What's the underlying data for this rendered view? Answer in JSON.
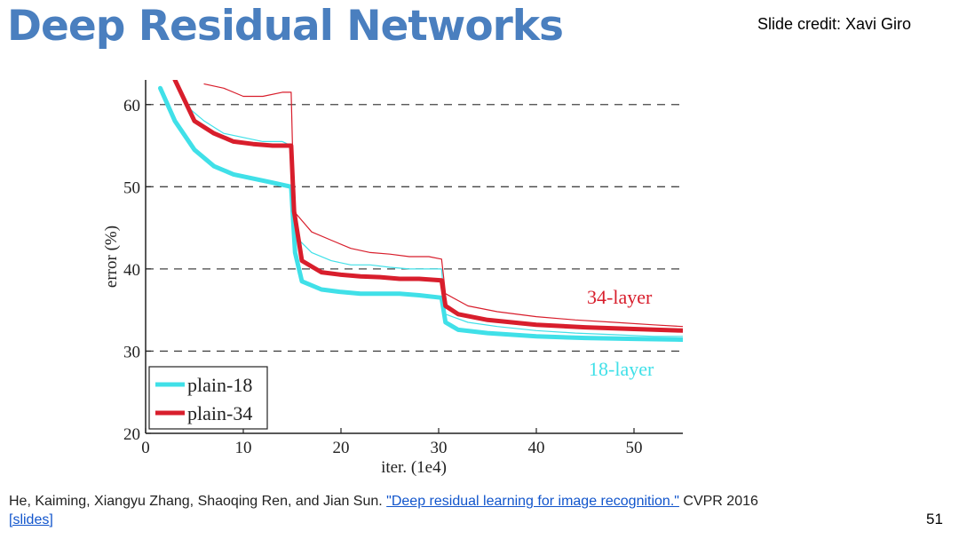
{
  "slide": {
    "title": "Deep Residual Networks",
    "credit": "Slide credit: Xavi Giro",
    "number": "51"
  },
  "citation": {
    "prefix": "He, Kaiming, Xiangyu Zhang, Shaoqing Ren, and Jian Sun.",
    "link_text": "\"Deep residual learning for image recognition.\"",
    "suffix": "CVPR 2016",
    "slides_link": "[slides]"
  },
  "colors": {
    "plain18": "#40e0e8",
    "plain34": "#d81e2c",
    "title": "#4a7fbf"
  },
  "chart_data": {
    "type": "line",
    "xlabel": "iter. (1e4)",
    "ylabel": "error (%)",
    "xlim": [
      0,
      55
    ],
    "ylim": [
      20,
      63
    ],
    "xticks": [
      0,
      10,
      20,
      30,
      40,
      50
    ],
    "yticks": [
      20,
      30,
      40,
      50,
      60
    ],
    "dashed_gridlines_y": [
      30,
      40,
      50,
      60
    ],
    "legend": {
      "position": "bottom-left",
      "entries": [
        "plain-18",
        "plain-34"
      ]
    },
    "annotations": [
      {
        "text": "34-layer",
        "series": "plain-34"
      },
      {
        "text": "18-layer",
        "series": "plain-18"
      }
    ],
    "series": [
      {
        "name": "plain-18",
        "role": "val",
        "color": "#40e0e8",
        "x": [
          1.5,
          3,
          5,
          7,
          9,
          11,
          13,
          14.9,
          15.3,
          16,
          18,
          20,
          22,
          24,
          26,
          28,
          30.3,
          30.7,
          32,
          35,
          40,
          45,
          50,
          55
        ],
        "y": [
          62,
          58,
          54.5,
          52.5,
          51.5,
          51,
          50.5,
          50,
          42,
          38.5,
          37.5,
          37.2,
          37,
          37,
          37,
          36.8,
          36.5,
          33.5,
          32.6,
          32.2,
          31.8,
          31.6,
          31.5,
          31.4
        ]
      },
      {
        "name": "plain-34",
        "role": "val",
        "color": "#d81e2c",
        "x": [
          3,
          5,
          7,
          9,
          11,
          13,
          14.9,
          15.2,
          16,
          18,
          20,
          22,
          24,
          26,
          28,
          30.3,
          30.7,
          32,
          35,
          40,
          45,
          50,
          55
        ],
        "y": [
          63,
          58,
          56.5,
          55.5,
          55.2,
          55,
          55,
          47,
          41,
          39.6,
          39.3,
          39.1,
          39,
          38.8,
          38.8,
          38.6,
          35.5,
          34.5,
          33.8,
          33.2,
          32.9,
          32.7,
          32.5
        ]
      },
      {
        "name": "plain-18 train",
        "role": "train",
        "color": "#40e0e8",
        "x": [
          4,
          6,
          8,
          10,
          12,
          14,
          14.9,
          15.3,
          17,
          19,
          21,
          23,
          25,
          27,
          29,
          30.3,
          30.7,
          33,
          36,
          40,
          44,
          48,
          52,
          55
        ],
        "y": [
          60,
          58,
          56.5,
          56,
          55.5,
          55.5,
          55,
          44,
          42,
          41,
          40.5,
          40.5,
          40.2,
          40,
          40,
          40,
          34.5,
          33.5,
          33,
          32.5,
          32.2,
          32,
          31.8,
          31.8
        ]
      },
      {
        "name": "plain-34 train",
        "role": "train",
        "color": "#d81e2c",
        "x": [
          6,
          8,
          10,
          12,
          14,
          14.9,
          15.2,
          17,
          19,
          21,
          23,
          25,
          27,
          29,
          30.3,
          30.7,
          33,
          36,
          40,
          44,
          48,
          52,
          55
        ],
        "y": [
          62.5,
          62,
          61,
          61,
          61.5,
          61.5,
          47,
          44.5,
          43.5,
          42.5,
          42,
          41.8,
          41.5,
          41.5,
          41.2,
          37,
          35.5,
          34.8,
          34.2,
          33.8,
          33.5,
          33.2,
          33
        ]
      }
    ]
  }
}
